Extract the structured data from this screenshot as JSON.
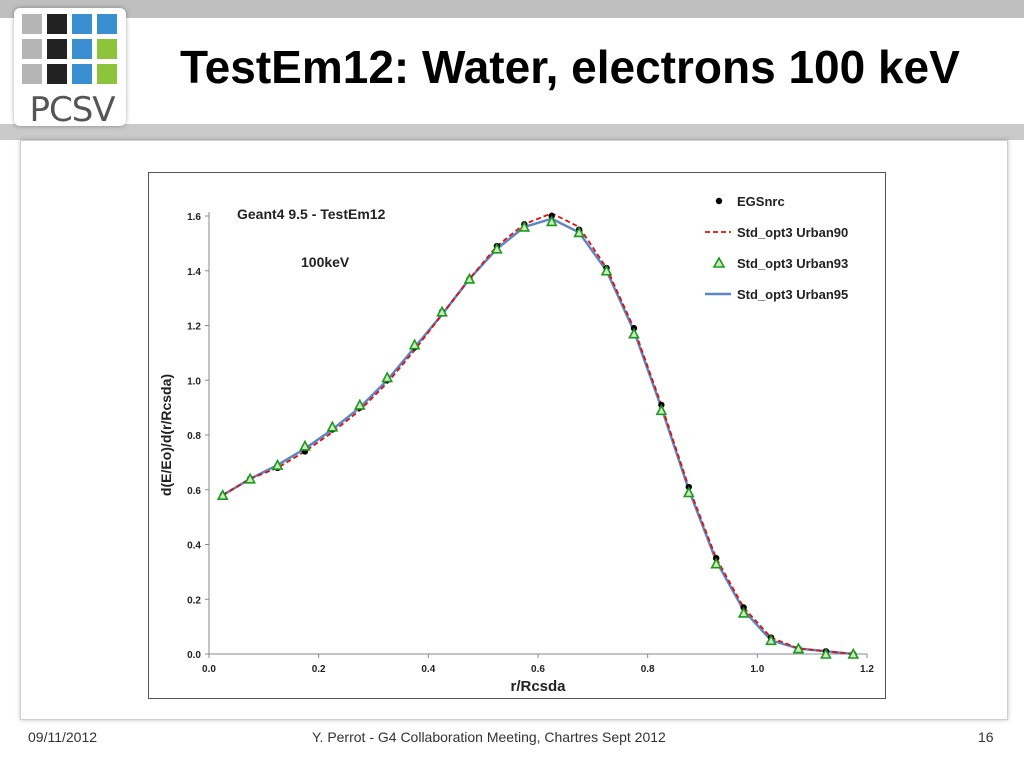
{
  "slide": {
    "logo_text": "PCSV",
    "title": "TestEm12: Water, electrons 100 keV",
    "footer_date": "09/11/2012",
    "footer_center": "Y. Perrot - G4 Collaboration Meeting, Chartres Sept 2012",
    "page_number": "16",
    "logo_colors": {
      "blue": "#3a8fd0",
      "green": "#8cc43c",
      "dark": "#222222",
      "light": "#b5b5b5"
    }
  },
  "chart_data": {
    "type": "line",
    "annotations": [
      "Geant4 9.5  - TestEm12",
      "100keV"
    ],
    "xlabel": "r/Rcsda",
    "ylabel": "d(E/Eo)/d(r/Rcsda)",
    "xlim": [
      0.0,
      1.2
    ],
    "ylim": [
      0.0,
      1.6
    ],
    "xticks": [
      "0.0",
      "0.2",
      "0.4",
      "0.6",
      "0.8",
      "1.0",
      "1.2"
    ],
    "yticks": [
      "0.0",
      "0.2",
      "0.4",
      "0.6",
      "0.8",
      "1.0",
      "1.2",
      "1.4",
      "1.6"
    ],
    "grid": false,
    "legend_position": "top-right",
    "series": [
      {
        "name": "EGSnrc",
        "marker": "dot",
        "color": "#000000",
        "x": [
          0.025,
          0.075,
          0.125,
          0.175,
          0.225,
          0.275,
          0.325,
          0.375,
          0.425,
          0.475,
          0.525,
          0.575,
          0.625,
          0.675,
          0.725,
          0.775,
          0.825,
          0.875,
          0.925,
          0.975,
          1.025,
          1.075,
          1.125,
          1.175
        ],
        "y": [
          0.58,
          0.64,
          0.68,
          0.74,
          0.82,
          0.9,
          1.0,
          1.12,
          1.25,
          1.37,
          1.49,
          1.57,
          1.6,
          1.55,
          1.41,
          1.19,
          0.91,
          0.61,
          0.35,
          0.17,
          0.06,
          0.02,
          0.01,
          0.0
        ]
      },
      {
        "name": "Std_opt3 Urban90",
        "marker": "dashed",
        "color": "#e01010",
        "x": [
          0.025,
          0.075,
          0.125,
          0.175,
          0.225,
          0.275,
          0.325,
          0.375,
          0.425,
          0.475,
          0.525,
          0.575,
          0.625,
          0.675,
          0.725,
          0.775,
          0.825,
          0.875,
          0.925,
          0.975,
          1.025,
          1.075,
          1.125,
          1.175
        ],
        "y": [
          0.58,
          0.64,
          0.68,
          0.74,
          0.81,
          0.89,
          0.99,
          1.11,
          1.24,
          1.37,
          1.49,
          1.57,
          1.61,
          1.56,
          1.41,
          1.19,
          0.91,
          0.61,
          0.35,
          0.17,
          0.06,
          0.02,
          0.01,
          0.0
        ]
      },
      {
        "name": "Std_opt3 Urban93",
        "marker": "triangle",
        "color": "#1a9a1a",
        "x": [
          0.025,
          0.075,
          0.125,
          0.175,
          0.225,
          0.275,
          0.325,
          0.375,
          0.425,
          0.475,
          0.525,
          0.575,
          0.625,
          0.675,
          0.725,
          0.775,
          0.825,
          0.875,
          0.925,
          0.975,
          1.025,
          1.075,
          1.125,
          1.175
        ],
        "y": [
          0.58,
          0.64,
          0.69,
          0.76,
          0.83,
          0.91,
          1.01,
          1.13,
          1.25,
          1.37,
          1.48,
          1.56,
          1.58,
          1.54,
          1.4,
          1.17,
          0.89,
          0.59,
          0.33,
          0.15,
          0.05,
          0.02,
          0.0,
          0.0
        ]
      },
      {
        "name": "Std_opt3 Urban95",
        "marker": "line",
        "color": "#5b87c4",
        "x": [
          0.025,
          0.075,
          0.125,
          0.175,
          0.225,
          0.275,
          0.325,
          0.375,
          0.425,
          0.475,
          0.525,
          0.575,
          0.625,
          0.675,
          0.725,
          0.775,
          0.825,
          0.875,
          0.925,
          0.975,
          1.025,
          1.075,
          1.125,
          1.175
        ],
        "y": [
          0.58,
          0.64,
          0.69,
          0.75,
          0.82,
          0.9,
          1.0,
          1.12,
          1.24,
          1.37,
          1.48,
          1.56,
          1.59,
          1.54,
          1.4,
          1.18,
          0.9,
          0.6,
          0.34,
          0.16,
          0.05,
          0.02,
          0.01,
          0.0
        ]
      }
    ]
  }
}
